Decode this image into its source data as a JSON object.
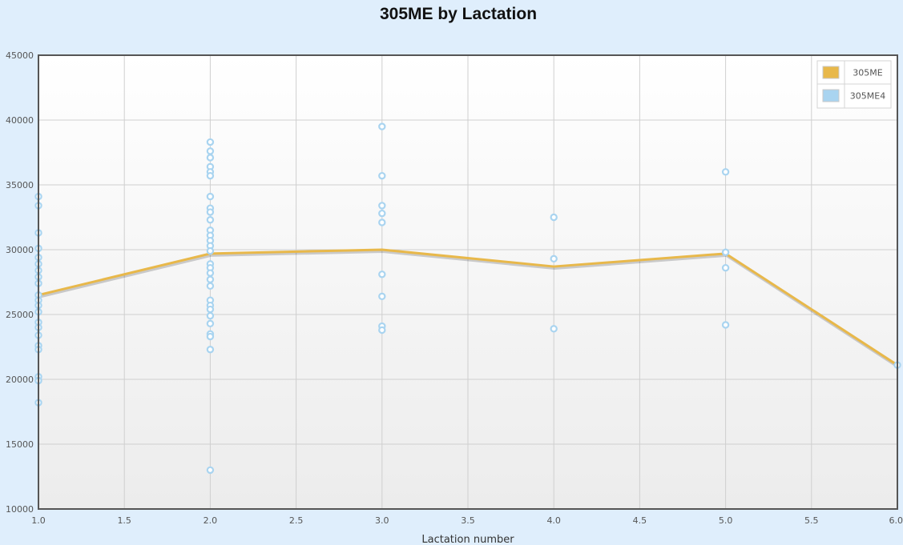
{
  "chart_data": {
    "type": "scatter",
    "title": "305ME by Lactation",
    "xlabel": "Lactation number",
    "ylabel": "",
    "xlim": [
      1.0,
      6.0
    ],
    "ylim": [
      10000,
      45000
    ],
    "x_ticks": [
      1.0,
      1.5,
      2.0,
      2.5,
      3.0,
      3.5,
      4.0,
      4.5,
      5.0,
      5.5,
      6.0
    ],
    "x_tick_labels": [
      "1.0",
      "1.5",
      "2.0",
      "2.5",
      "3.0",
      "3.5",
      "4.0",
      "4.5",
      "5.0",
      "5.5",
      "6.0"
    ],
    "y_ticks": [
      10000,
      15000,
      20000,
      25000,
      30000,
      35000,
      40000,
      45000
    ],
    "y_tick_labels": [
      "10000",
      "15000",
      "20000",
      "25000",
      "30000",
      "35000",
      "40000",
      "45000"
    ],
    "grid": true,
    "legend_position": "top-right",
    "series": [
      {
        "name": "305ME",
        "kind": "line",
        "color": "#e8b84a",
        "points": [
          [
            1,
            26500
          ],
          [
            2,
            29700
          ],
          [
            3,
            30000
          ],
          [
            4,
            28700
          ],
          [
            5,
            29700
          ],
          [
            6,
            21100
          ]
        ]
      },
      {
        "name": "305ME4",
        "kind": "scatter",
        "color": "#a9d4f0",
        "points": [
          [
            1,
            34100
          ],
          [
            1,
            33400
          ],
          [
            1,
            31300
          ],
          [
            1,
            30100
          ],
          [
            1,
            29400
          ],
          [
            1,
            28900
          ],
          [
            1,
            28400
          ],
          [
            1,
            27900
          ],
          [
            1,
            27400
          ],
          [
            1,
            26500
          ],
          [
            1,
            26100
          ],
          [
            1,
            25700
          ],
          [
            1,
            25200
          ],
          [
            1,
            24400
          ],
          [
            1,
            24000
          ],
          [
            1,
            23400
          ],
          [
            1,
            22600
          ],
          [
            1,
            22300
          ],
          [
            1,
            20200
          ],
          [
            1,
            19900
          ],
          [
            1,
            18200
          ],
          [
            2,
            38300
          ],
          [
            2,
            37600
          ],
          [
            2,
            37100
          ],
          [
            2,
            36400
          ],
          [
            2,
            36000
          ],
          [
            2,
            35700
          ],
          [
            2,
            34100
          ],
          [
            2,
            33200
          ],
          [
            2,
            32900
          ],
          [
            2,
            32300
          ],
          [
            2,
            31500
          ],
          [
            2,
            31100
          ],
          [
            2,
            30700
          ],
          [
            2,
            30300
          ],
          [
            2,
            29900
          ],
          [
            2,
            28900
          ],
          [
            2,
            28600
          ],
          [
            2,
            28200
          ],
          [
            2,
            27700
          ],
          [
            2,
            27200
          ],
          [
            2,
            26100
          ],
          [
            2,
            25700
          ],
          [
            2,
            25400
          ],
          [
            2,
            24900
          ],
          [
            2,
            24300
          ],
          [
            2,
            23500
          ],
          [
            2,
            23300
          ],
          [
            2,
            22300
          ],
          [
            2,
            13000
          ],
          [
            3,
            39500
          ],
          [
            3,
            35700
          ],
          [
            3,
            33400
          ],
          [
            3,
            32800
          ],
          [
            3,
            32100
          ],
          [
            3,
            28100
          ],
          [
            3,
            26400
          ],
          [
            3,
            24100
          ],
          [
            3,
            23800
          ],
          [
            4,
            32500
          ],
          [
            4,
            29300
          ],
          [
            4,
            23900
          ],
          [
            5,
            36000
          ],
          [
            5,
            29800
          ],
          [
            5,
            28600
          ],
          [
            5,
            24200
          ],
          [
            6,
            21100
          ]
        ]
      }
    ]
  }
}
